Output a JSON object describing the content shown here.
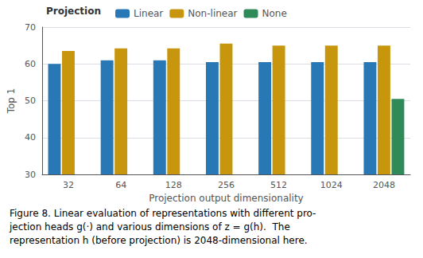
{
  "chart_data": {
    "type": "bar",
    "categories": [
      "32",
      "64",
      "128",
      "256",
      "512",
      "1024",
      "2048"
    ],
    "series": [
      {
        "name": "Linear",
        "color": "#2878B5",
        "values": [
          60.0,
          61.0,
          61.0,
          60.5,
          60.5,
          60.5,
          60.5
        ]
      },
      {
        "name": "Non-linear",
        "color": "#C8960C",
        "values": [
          63.5,
          64.2,
          64.2,
          65.5,
          65.0,
          65.0,
          65.0
        ]
      },
      {
        "name": "None",
        "color": "#2E8B57",
        "values": [
          null,
          null,
          null,
          null,
          null,
          null,
          50.5
        ]
      }
    ],
    "ylabel": "Top 1",
    "xlabel": "Projection output dimensionality",
    "legend_title": "Projection",
    "legend": "top",
    "ylim": [
      30,
      70
    ],
    "yticks": [
      30,
      40,
      50,
      60,
      70
    ],
    "grid": true,
    "annotations": [
      "Figure 8. Linear evaluation of representations with different pro-",
      "jection heads g(·) and various dimensions of z = g(h).  The",
      "representation h (before projection) is 2048-dimensional here."
    ]
  }
}
